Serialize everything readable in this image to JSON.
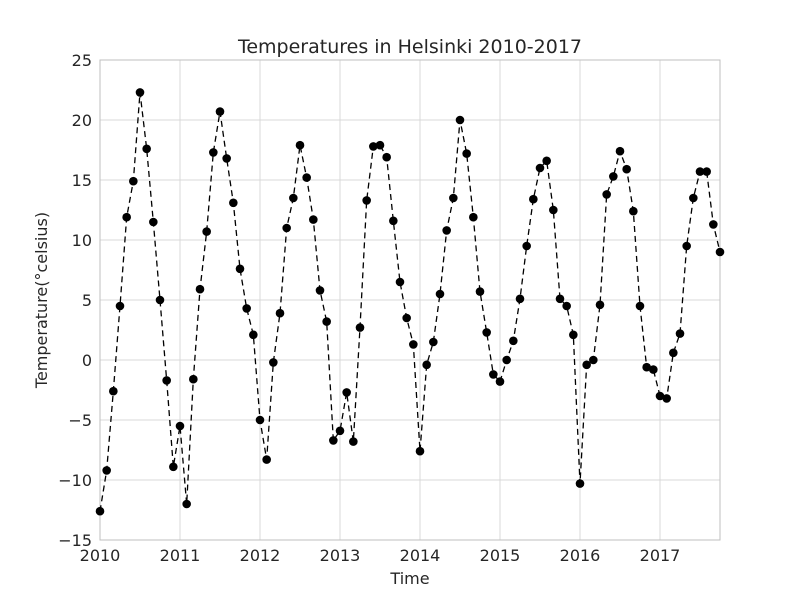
{
  "chart_data": {
    "type": "line",
    "title": "Temperatures in Helsinki 2010-2017",
    "xlabel": "Time",
    "ylabel": "Temperature(°celsius)",
    "x_ticks": [
      "2010",
      "2011",
      "2012",
      "2013",
      "2014",
      "2015",
      "2016",
      "2017"
    ],
    "y_ticks": [
      "−15",
      "−10",
      "−5",
      "0",
      "5",
      "10",
      "15",
      "20",
      "25"
    ],
    "xlim": [
      "2010-01",
      "2017-10"
    ],
    "ylim": [
      -15,
      25
    ],
    "grid": true,
    "line_style": "dashed",
    "marker": "circle",
    "series_color": "#000000",
    "x": [
      "2010-01",
      "2010-02",
      "2010-03",
      "2010-04",
      "2010-05",
      "2010-06",
      "2010-07",
      "2010-08",
      "2010-09",
      "2010-10",
      "2010-11",
      "2010-12",
      "2011-01",
      "2011-02",
      "2011-03",
      "2011-04",
      "2011-05",
      "2011-06",
      "2011-07",
      "2011-08",
      "2011-09",
      "2011-10",
      "2011-11",
      "2011-12",
      "2012-01",
      "2012-02",
      "2012-03",
      "2012-04",
      "2012-05",
      "2012-06",
      "2012-07",
      "2012-08",
      "2012-09",
      "2012-10",
      "2012-11",
      "2012-12",
      "2013-01",
      "2013-02",
      "2013-03",
      "2013-04",
      "2013-05",
      "2013-06",
      "2013-07",
      "2013-08",
      "2013-09",
      "2013-10",
      "2013-11",
      "2013-12",
      "2014-01",
      "2014-02",
      "2014-03",
      "2014-04",
      "2014-05",
      "2014-06",
      "2014-07",
      "2014-08",
      "2014-09",
      "2014-10",
      "2014-11",
      "2014-12",
      "2015-01",
      "2015-02",
      "2015-03",
      "2015-04",
      "2015-05",
      "2015-06",
      "2015-07",
      "2015-08",
      "2015-09",
      "2015-10",
      "2015-11",
      "2015-12",
      "2016-01",
      "2016-02",
      "2016-03",
      "2016-04",
      "2016-05",
      "2016-06",
      "2016-07",
      "2016-08",
      "2016-09",
      "2016-10",
      "2016-11",
      "2016-12",
      "2017-01",
      "2017-02",
      "2017-03",
      "2017-04",
      "2017-05",
      "2017-06",
      "2017-07",
      "2017-08",
      "2017-09",
      "2017-10"
    ],
    "series": [
      {
        "values": [
          -12.6,
          -9.2,
          -2.6,
          4.5,
          11.9,
          14.9,
          22.3,
          17.6,
          11.5,
          5.0,
          -1.7,
          -8.9,
          -5.5,
          -12.0,
          -1.6,
          5.9,
          10.7,
          17.3,
          20.7,
          16.8,
          13.1,
          7.6,
          4.3,
          2.1,
          -5.0,
          -8.3,
          -0.2,
          3.9,
          11.0,
          13.5,
          17.9,
          15.2,
          11.7,
          5.8,
          3.2,
          -6.7,
          -5.9,
          -2.7,
          -6.8,
          2.7,
          13.3,
          17.8,
          17.9,
          16.9,
          11.6,
          6.5,
          3.5,
          1.3,
          -7.6,
          -0.4,
          1.5,
          5.5,
          10.8,
          13.5,
          20.0,
          17.2,
          11.9,
          5.7,
          2.3,
          -1.2,
          -1.8,
          0.0,
          1.6,
          5.1,
          9.5,
          13.4,
          16.0,
          16.6,
          12.5,
          5.1,
          4.5,
          2.1,
          -10.3,
          -0.4,
          0.0,
          4.6,
          13.8,
          15.3,
          17.4,
          15.9,
          12.4,
          4.5,
          -0.6,
          -0.8,
          -3.0,
          -3.2,
          0.6,
          2.2,
          9.5,
          13.5,
          15.7,
          15.7,
          11.3,
          9.0
        ]
      }
    ]
  }
}
